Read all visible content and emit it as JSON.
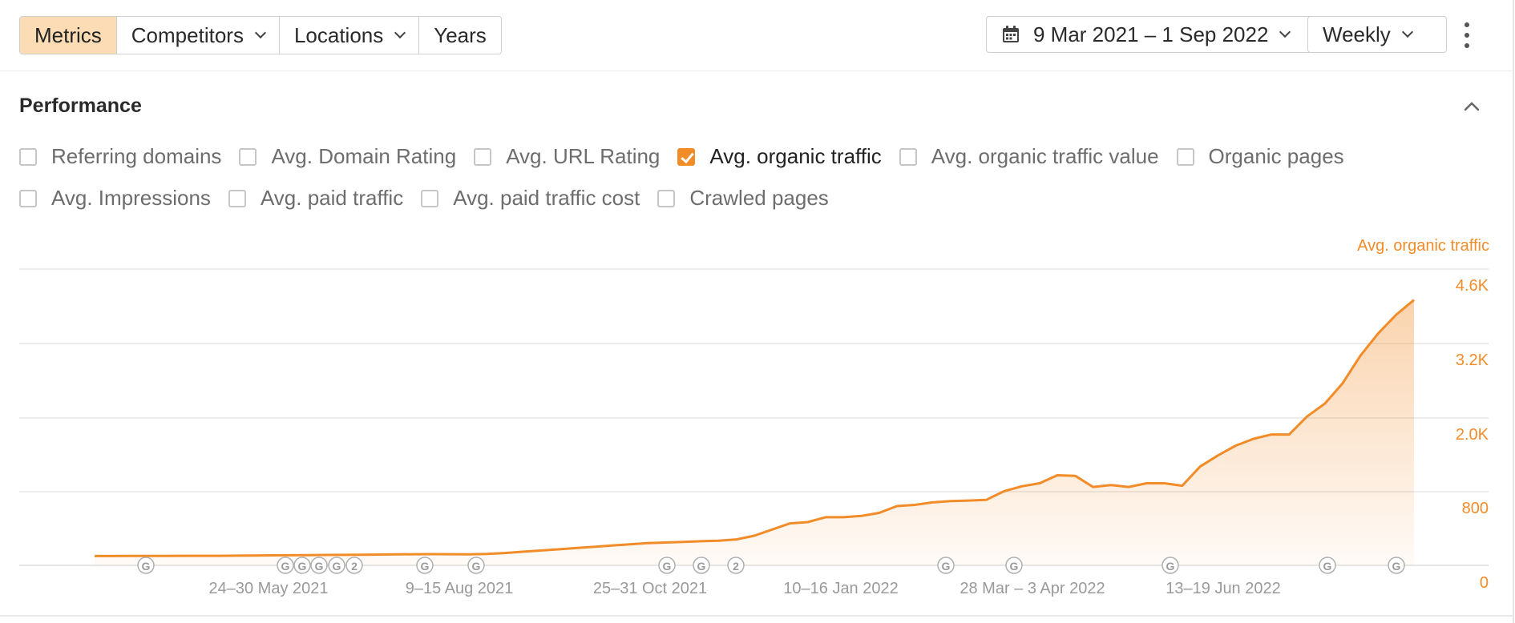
{
  "toolbar": {
    "tabs": [
      {
        "label": "Metrics",
        "active": true,
        "dropdown": false
      },
      {
        "label": "Competitors",
        "active": false,
        "dropdown": true
      },
      {
        "label": "Locations",
        "active": false,
        "dropdown": true
      },
      {
        "label": "Years",
        "active": false,
        "dropdown": false
      }
    ],
    "date_range": "9 Mar 2021 – 1 Sep 2022",
    "interval": "Weekly",
    "icons": {
      "date": "calendar-icon",
      "menu": "more-vertical-icon"
    }
  },
  "panel": {
    "title": "Performance",
    "collapse_icon": "chevron-up-icon",
    "metrics_row1": [
      {
        "label": "Referring domains",
        "checked": false
      },
      {
        "label": "Avg. Domain Rating",
        "checked": false
      },
      {
        "label": "Avg. URL Rating",
        "checked": false
      },
      {
        "label": "Avg. organic traffic",
        "checked": true
      },
      {
        "label": "Avg. organic traffic value",
        "checked": false
      },
      {
        "label": "Organic pages",
        "checked": false
      }
    ],
    "metrics_row2": [
      {
        "label": "Avg. Impressions",
        "checked": false
      },
      {
        "label": "Avg. paid traffic",
        "checked": false
      },
      {
        "label": "Avg. paid traffic cost",
        "checked": false
      },
      {
        "label": "Crawled pages",
        "checked": false
      }
    ]
  },
  "colors": {
    "accent": "#f28c28",
    "active_tab": "#fbdcb4",
    "grid": "#e5e5e5",
    "marker": "#b0b0b0"
  },
  "chart_data": {
    "type": "area",
    "series_label": "Avg. organic traffic",
    "x_tick_labels": [
      "24–30 May 2021",
      "9–15 Aug 2021",
      "25–31 Oct 2021",
      "10–16 Jan 2022",
      "28 Mar – 3 Apr 2022",
      "13–19 Jun 2022"
    ],
    "y_tick_labels": [
      "0",
      "800",
      "2.0K",
      "3.2K",
      "4.6K"
    ],
    "ylim": [
      0,
      4800
    ],
    "grid": true,
    "series": [
      {
        "values": [
          150,
          150,
          152,
          152,
          153,
          154,
          155,
          155,
          157,
          160,
          162,
          164,
          166,
          168,
          170,
          172,
          175,
          178,
          180,
          182,
          180,
          178,
          185,
          200,
          220,
          240,
          260,
          280,
          300,
          320,
          340,
          360,
          370,
          380,
          390,
          400,
          420,
          480,
          580,
          680,
          700,
          780,
          780,
          800,
          850,
          960,
          980,
          1020,
          1040,
          1050,
          1060,
          1200,
          1280,
          1330,
          1460,
          1450,
          1270,
          1300,
          1270,
          1330,
          1330,
          1290,
          1600,
          1780,
          1940,
          2050,
          2120,
          2120,
          2410,
          2620,
          2950,
          3400,
          3760,
          4060,
          4300
        ]
      }
    ],
    "annotations": {
      "marker_type": "Google update",
      "markers": [
        {
          "symbol": "G",
          "count": 1
        },
        {
          "symbol": "G",
          "count": 1
        },
        {
          "symbol": "G",
          "count": 1
        },
        {
          "symbol": "G",
          "count": 1
        },
        {
          "symbol": "G",
          "count": 1
        },
        {
          "symbol": "2",
          "count": 2
        },
        {
          "symbol": "G",
          "count": 1
        },
        {
          "symbol": "G",
          "count": 1
        },
        {
          "symbol": "G",
          "count": 1
        },
        {
          "symbol": "G",
          "count": 1
        },
        {
          "symbol": "2",
          "count": 2
        },
        {
          "symbol": "G",
          "count": 1
        },
        {
          "symbol": "G",
          "count": 1
        },
        {
          "symbol": "G",
          "count": 1
        },
        {
          "symbol": "G",
          "count": 1
        },
        {
          "symbol": "G",
          "count": 1
        }
      ]
    }
  }
}
